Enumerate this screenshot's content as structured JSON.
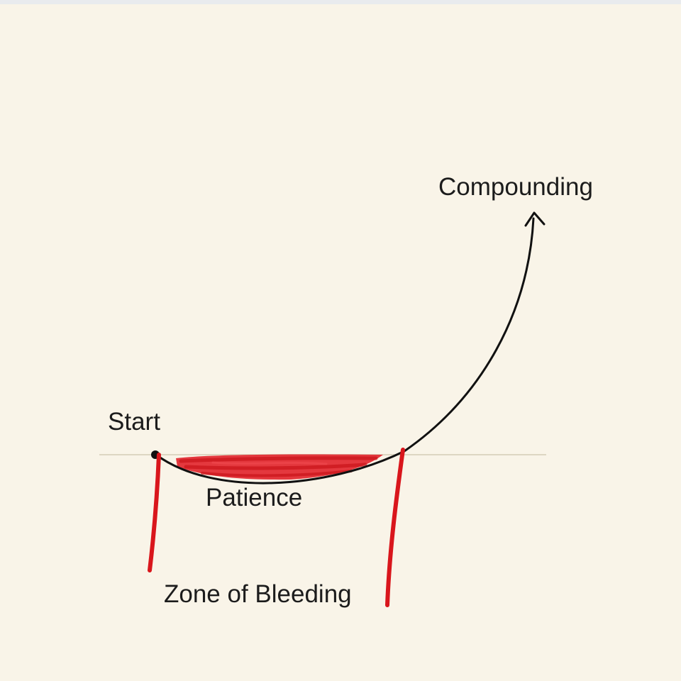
{
  "labels": {
    "compounding": "Compounding",
    "start": "Start",
    "patience": "Patience",
    "zone": "Zone of Bleeding"
  },
  "colors": {
    "background": "#f9f4e8",
    "baseline": "#ddd6c2",
    "curve": "#111111",
    "marker": "#d9161c",
    "highlight": "#e01e25"
  }
}
